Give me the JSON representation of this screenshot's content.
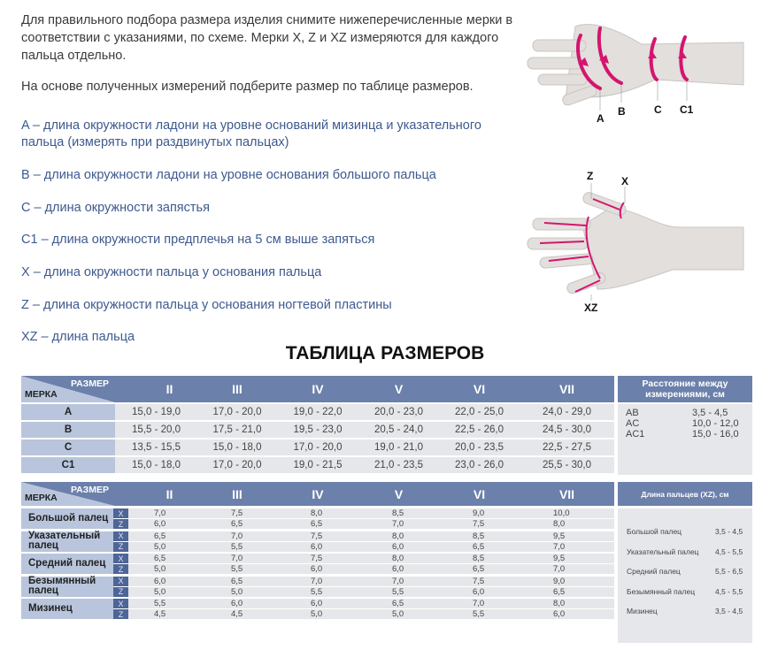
{
  "intro": {
    "paragraph1": "Для правильного подбора размера изделия снимите нижеперечисленные мерки в соответствии с указаниями, по схеме. Мерки X, Z и XZ измеряются для каждого пальца отдельно.",
    "paragraph2": "На основе полученных измерений подберите размер по таблице размеров."
  },
  "definitions": [
    "A – длина окружности ладони на уровне оснований мизинца и указательного пальца (измерять при раздвинутых пальцах)",
    "B – длина окружности ладони на уровне основания большого пальца",
    "C – длина окружности запястья",
    "C1 – длина окружности предплечья на 5 см выше запяться",
    "X – длина окружности пальца у основания пальца",
    "Z – длина окружности пальца у основания ногтевой пластины",
    "XZ – длина пальца"
  ],
  "diagram_labels": {
    "a": "A",
    "b": "B",
    "c": "C",
    "c1": "C1",
    "z": "Z",
    "x": "X",
    "xz": "XZ"
  },
  "colors": {
    "header": "#6b80ab",
    "label": "#b8c5dc",
    "cell": "#e6e7ea",
    "accent": "#d4156f"
  },
  "title": "ТАБЛИЦА РАЗМЕРОВ",
  "table1": {
    "corner_size": "РАЗМЕР",
    "corner_measure": "МЕРКА",
    "sizes": [
      "II",
      "III",
      "IV",
      "V",
      "VI",
      "VII"
    ],
    "rows": [
      {
        "label": "A",
        "values": [
          "15,0 - 19,0",
          "17,0 - 20,0",
          "19,0 - 22,0",
          "20,0 - 23,0",
          "22,0 - 25,0",
          "24,0 - 29,0"
        ]
      },
      {
        "label": "B",
        "values": [
          "15,5 - 20,0",
          "17,5 - 21,0",
          "19,5 - 23,0",
          "20,5 - 24,0",
          "22,5 - 26,0",
          "24,5 - 30,0"
        ]
      },
      {
        "label": "C",
        "values": [
          "13,5 - 15,5",
          "15,0 - 18,0",
          "17,0 - 20,0",
          "19,0 - 21,0",
          "20,0 - 23,5",
          "22,5 - 27,5"
        ]
      },
      {
        "label": "C1",
        "values": [
          "15,0 - 18,0",
          "17,0 - 20,0",
          "19,0 - 21,5",
          "21,0 - 23,5",
          "23,0 - 26,0",
          "25,5 - 30,0"
        ]
      }
    ],
    "side_title": "Расстояние между измерениями, см",
    "side_rows": [
      {
        "name": "AB",
        "value": "3,5 - 4,5"
      },
      {
        "name": "AC",
        "value": "10,0 - 12,0"
      },
      {
        "name": "AC1",
        "value": "15,0 - 16,0"
      }
    ]
  },
  "table2": {
    "corner_size": "РАЗМЕР",
    "corner_measure": "МЕРКА",
    "sizes": [
      "II",
      "III",
      "IV",
      "V",
      "VI",
      "VII"
    ],
    "rows": [
      {
        "label": "Большой палец",
        "x": [
          "7,0",
          "7,5",
          "8,0",
          "8,5",
          "9,0",
          "10,0"
        ],
        "z": [
          "6,0",
          "6,5",
          "6,5",
          "7,0",
          "7,5",
          "8,0"
        ]
      },
      {
        "label": "Указательный палец",
        "x": [
          "6,5",
          "7,0",
          "7,5",
          "8,0",
          "8,5",
          "9,5"
        ],
        "z": [
          "5,0",
          "5,5",
          "6,0",
          "6,0",
          "6,5",
          "7,0"
        ]
      },
      {
        "label": "Средний палец",
        "x": [
          "6,5",
          "7,0",
          "7,5",
          "8,0",
          "8,5",
          "9,5"
        ],
        "z": [
          "5,0",
          "5,5",
          "6,0",
          "6,0",
          "6,5",
          "7,0"
        ]
      },
      {
        "label": "Безымянный палец",
        "x": [
          "6,0",
          "6,5",
          "7,0",
          "7,0",
          "7,5",
          "9,0"
        ],
        "z": [
          "5,0",
          "5,0",
          "5,5",
          "5,5",
          "6,0",
          "6,5"
        ]
      },
      {
        "label": "Мизинец",
        "x": [
          "5,5",
          "6,0",
          "6,0",
          "6,5",
          "7,0",
          "8,0"
        ],
        "z": [
          "4,5",
          "4,5",
          "5,0",
          "5,0",
          "5,5",
          "6,0"
        ]
      }
    ],
    "x_label": "X",
    "z_label": "Z",
    "side_title": "Длина пальцев (XZ), см",
    "side_rows": [
      {
        "name": "Большой палец",
        "value": "3,5 - 4,5"
      },
      {
        "name": "Указательный палец",
        "value": "4,5 - 5,5"
      },
      {
        "name": "Средний палец",
        "value": "5,5 - 6,5"
      },
      {
        "name": "Безымянный палец",
        "value": "4,5 - 5,5"
      },
      {
        "name": "Мизинец",
        "value": "3,5 - 4,5"
      }
    ]
  }
}
